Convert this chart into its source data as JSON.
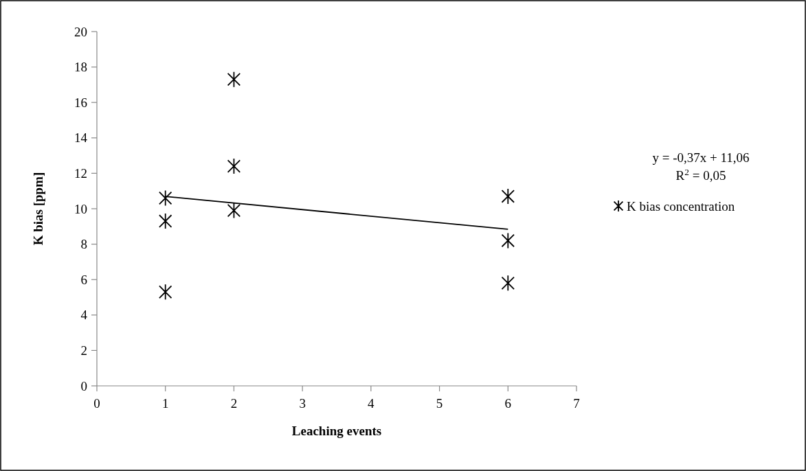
{
  "chart_data": {
    "type": "scatter",
    "xlabel": "Leaching events",
    "ylabel": "K bias [ppm]",
    "xlim": [
      0,
      7
    ],
    "xticks": [
      0,
      1,
      2,
      3,
      4,
      5,
      6,
      7
    ],
    "ylim": [
      0,
      20
    ],
    "yticks": [
      0,
      2,
      4,
      6,
      8,
      10,
      12,
      14,
      16,
      18,
      20
    ],
    "marker": "cross",
    "legend": "right",
    "grid": false,
    "annotations": [
      "y = -0,37x + 11,06",
      "R$^{2}$ = 0,05"
    ],
    "series": [
      {
        "name": "K bias concentration",
        "color": "#000000",
        "x": [
          1,
          1,
          1,
          2,
          2,
          2,
          6,
          6,
          6
        ],
        "values": [
          10.6,
          9.3,
          5.3,
          17.3,
          12.4,
          9.9,
          10.7,
          8.2,
          5.8
        ]
      },
      {
        "type": "line",
        "color": "#000000",
        "marker": "none",
        "x": [
          1,
          6
        ],
        "values": [
          10.69,
          8.84
        ]
      }
    ]
  }
}
